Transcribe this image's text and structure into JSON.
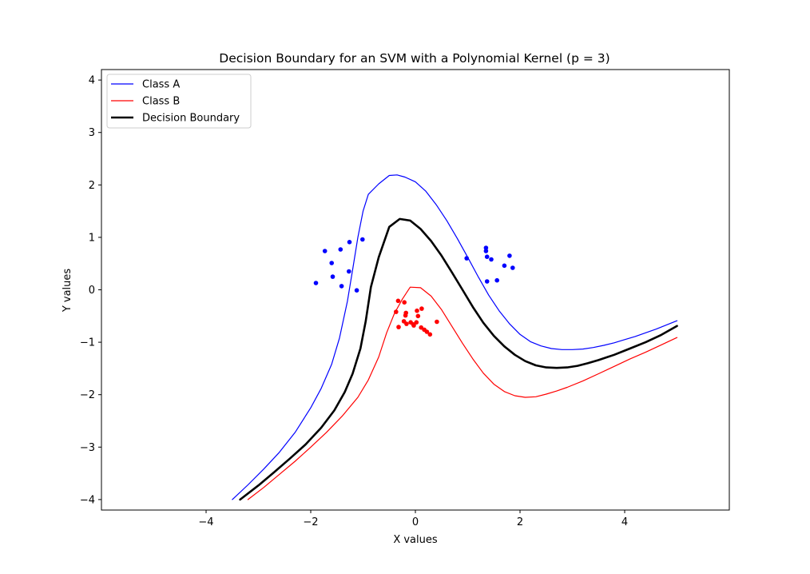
{
  "chart_data": {
    "type": "scatter",
    "title": "Decision Boundary for an SVM with a Polynomial Kernel (p = 3)",
    "xlabel": "X values",
    "ylabel": "Y values",
    "xlim": [
      -6.0,
      6.0
    ],
    "ylim": [
      -4.2,
      4.2
    ],
    "xticks": [
      -4,
      -2,
      0,
      2,
      4
    ],
    "yticks": [
      -4,
      -3,
      -2,
      -1,
      0,
      1,
      2,
      3,
      4
    ],
    "grid": false,
    "legend_position": "upper left",
    "scatter": [
      {
        "class": "A",
        "color": "#0000ff",
        "points": [
          [
            -1.9,
            0.13
          ],
          [
            -1.73,
            0.74
          ],
          [
            -1.58,
            0.25
          ],
          [
            -1.6,
            0.51
          ],
          [
            -1.43,
            0.77
          ],
          [
            -1.41,
            0.07
          ],
          [
            -1.26,
            0.91
          ],
          [
            -1.27,
            0.35
          ],
          [
            -1.12,
            -0.01
          ],
          [
            -1.01,
            0.96
          ],
          [
            0.98,
            0.6
          ],
          [
            1.35,
            0.8
          ],
          [
            1.35,
            0.74
          ],
          [
            1.37,
            0.63
          ],
          [
            1.45,
            0.58
          ],
          [
            1.37,
            0.16
          ],
          [
            1.56,
            0.18
          ],
          [
            1.7,
            0.46
          ],
          [
            1.8,
            0.65
          ],
          [
            1.86,
            0.42
          ]
        ]
      },
      {
        "class": "B",
        "color": "#ff0000",
        "points": [
          [
            -0.33,
            -0.21
          ],
          [
            -0.37,
            -0.42
          ],
          [
            -0.32,
            -0.71
          ],
          [
            -0.21,
            -0.24
          ],
          [
            -0.18,
            -0.44
          ],
          [
            -0.19,
            -0.49
          ],
          [
            -0.22,
            -0.6
          ],
          [
            -0.17,
            -0.65
          ],
          [
            -0.09,
            -0.62
          ],
          [
            -0.04,
            -0.66
          ],
          [
            0.02,
            -0.62
          ],
          [
            0.03,
            -0.4
          ],
          [
            0.05,
            -0.5
          ],
          [
            0.12,
            -0.36
          ],
          [
            0.11,
            -0.72
          ],
          [
            0.17,
            -0.76
          ],
          [
            0.22,
            -0.8
          ],
          [
            0.28,
            -0.85
          ],
          [
            0.41,
            -0.61
          ],
          [
            -0.03,
            -0.68
          ]
        ]
      }
    ],
    "series": [
      {
        "name": "Class A",
        "color": "#0000ff",
        "width": 1.2,
        "x": [
          -3.5,
          -3.2,
          -2.9,
          -2.6,
          -2.3,
          -2.0,
          -1.8,
          -1.6,
          -1.45,
          -1.3,
          -1.2,
          -1.1,
          -1.0,
          -0.9,
          -0.7,
          -0.5,
          -0.35,
          -0.2,
          0.0,
          0.2,
          0.4,
          0.6,
          0.8,
          1.0,
          1.2,
          1.4,
          1.6,
          1.8,
          2.0,
          2.2,
          2.4,
          2.6,
          2.8,
          3.0,
          3.2,
          3.4,
          3.6,
          3.8,
          4.0,
          4.2,
          4.4,
          4.6,
          4.8,
          5.0
        ],
        "y": [
          -4.0,
          -3.72,
          -3.42,
          -3.1,
          -2.72,
          -2.25,
          -1.88,
          -1.42,
          -0.92,
          -0.22,
          0.38,
          1.0,
          1.5,
          1.82,
          2.02,
          2.18,
          2.19,
          2.15,
          2.06,
          1.88,
          1.62,
          1.32,
          0.98,
          0.62,
          0.25,
          -0.1,
          -0.4,
          -0.65,
          -0.85,
          -0.99,
          -1.07,
          -1.12,
          -1.14,
          -1.14,
          -1.13,
          -1.1,
          -1.06,
          -1.01,
          -0.95,
          -0.89,
          -0.82,
          -0.75,
          -0.67,
          -0.59
        ]
      },
      {
        "name": "Class B",
        "color": "#ff0000",
        "width": 1.2,
        "x": [
          -3.2,
          -2.9,
          -2.6,
          -2.3,
          -2.0,
          -1.7,
          -1.4,
          -1.1,
          -0.9,
          -0.7,
          -0.55,
          -0.4,
          -0.25,
          -0.1,
          0.1,
          0.3,
          0.5,
          0.7,
          0.9,
          1.1,
          1.3,
          1.5,
          1.7,
          1.9,
          2.1,
          2.3,
          2.5,
          2.7,
          2.9,
          3.2,
          3.5,
          3.8,
          4.1,
          4.4,
          4.7,
          5.0
        ],
        "y": [
          -4.0,
          -3.77,
          -3.52,
          -3.27,
          -3.0,
          -2.72,
          -2.41,
          -2.05,
          -1.72,
          -1.28,
          -0.82,
          -0.45,
          -0.18,
          0.05,
          0.04,
          -0.12,
          -0.38,
          -0.7,
          -1.02,
          -1.32,
          -1.59,
          -1.8,
          -1.94,
          -2.02,
          -2.05,
          -2.04,
          -1.99,
          -1.93,
          -1.86,
          -1.74,
          -1.6,
          -1.46,
          -1.32,
          -1.19,
          -1.05,
          -0.91
        ]
      },
      {
        "name": "Decision Boundary",
        "color": "#000000",
        "width": 2.6,
        "x": [
          -3.35,
          -3.0,
          -2.7,
          -2.4,
          -2.1,
          -1.8,
          -1.55,
          -1.35,
          -1.2,
          -1.05,
          -0.95,
          -0.85,
          -0.7,
          -0.5,
          -0.3,
          -0.1,
          0.1,
          0.3,
          0.5,
          0.7,
          0.9,
          1.1,
          1.3,
          1.5,
          1.7,
          1.9,
          2.1,
          2.3,
          2.5,
          2.7,
          2.9,
          3.1,
          3.3,
          3.5,
          3.8,
          4.1,
          4.4,
          4.7,
          5.0
        ],
        "y": [
          -4.0,
          -3.73,
          -3.48,
          -3.22,
          -2.95,
          -2.63,
          -2.3,
          -1.95,
          -1.6,
          -1.12,
          -0.6,
          0.05,
          0.62,
          1.2,
          1.35,
          1.32,
          1.16,
          0.93,
          0.65,
          0.33,
          0.0,
          -0.33,
          -0.63,
          -0.88,
          -1.08,
          -1.24,
          -1.36,
          -1.44,
          -1.48,
          -1.49,
          -1.48,
          -1.45,
          -1.4,
          -1.34,
          -1.24,
          -1.12,
          -1.0,
          -0.86,
          -0.69
        ]
      }
    ],
    "legend": [
      {
        "label": "Class A",
        "color": "#0000ff",
        "width": 1.2
      },
      {
        "label": "Class B",
        "color": "#ff0000",
        "width": 1.2
      },
      {
        "label": "Decision Boundary",
        "color": "#000000",
        "width": 2.6
      }
    ]
  }
}
